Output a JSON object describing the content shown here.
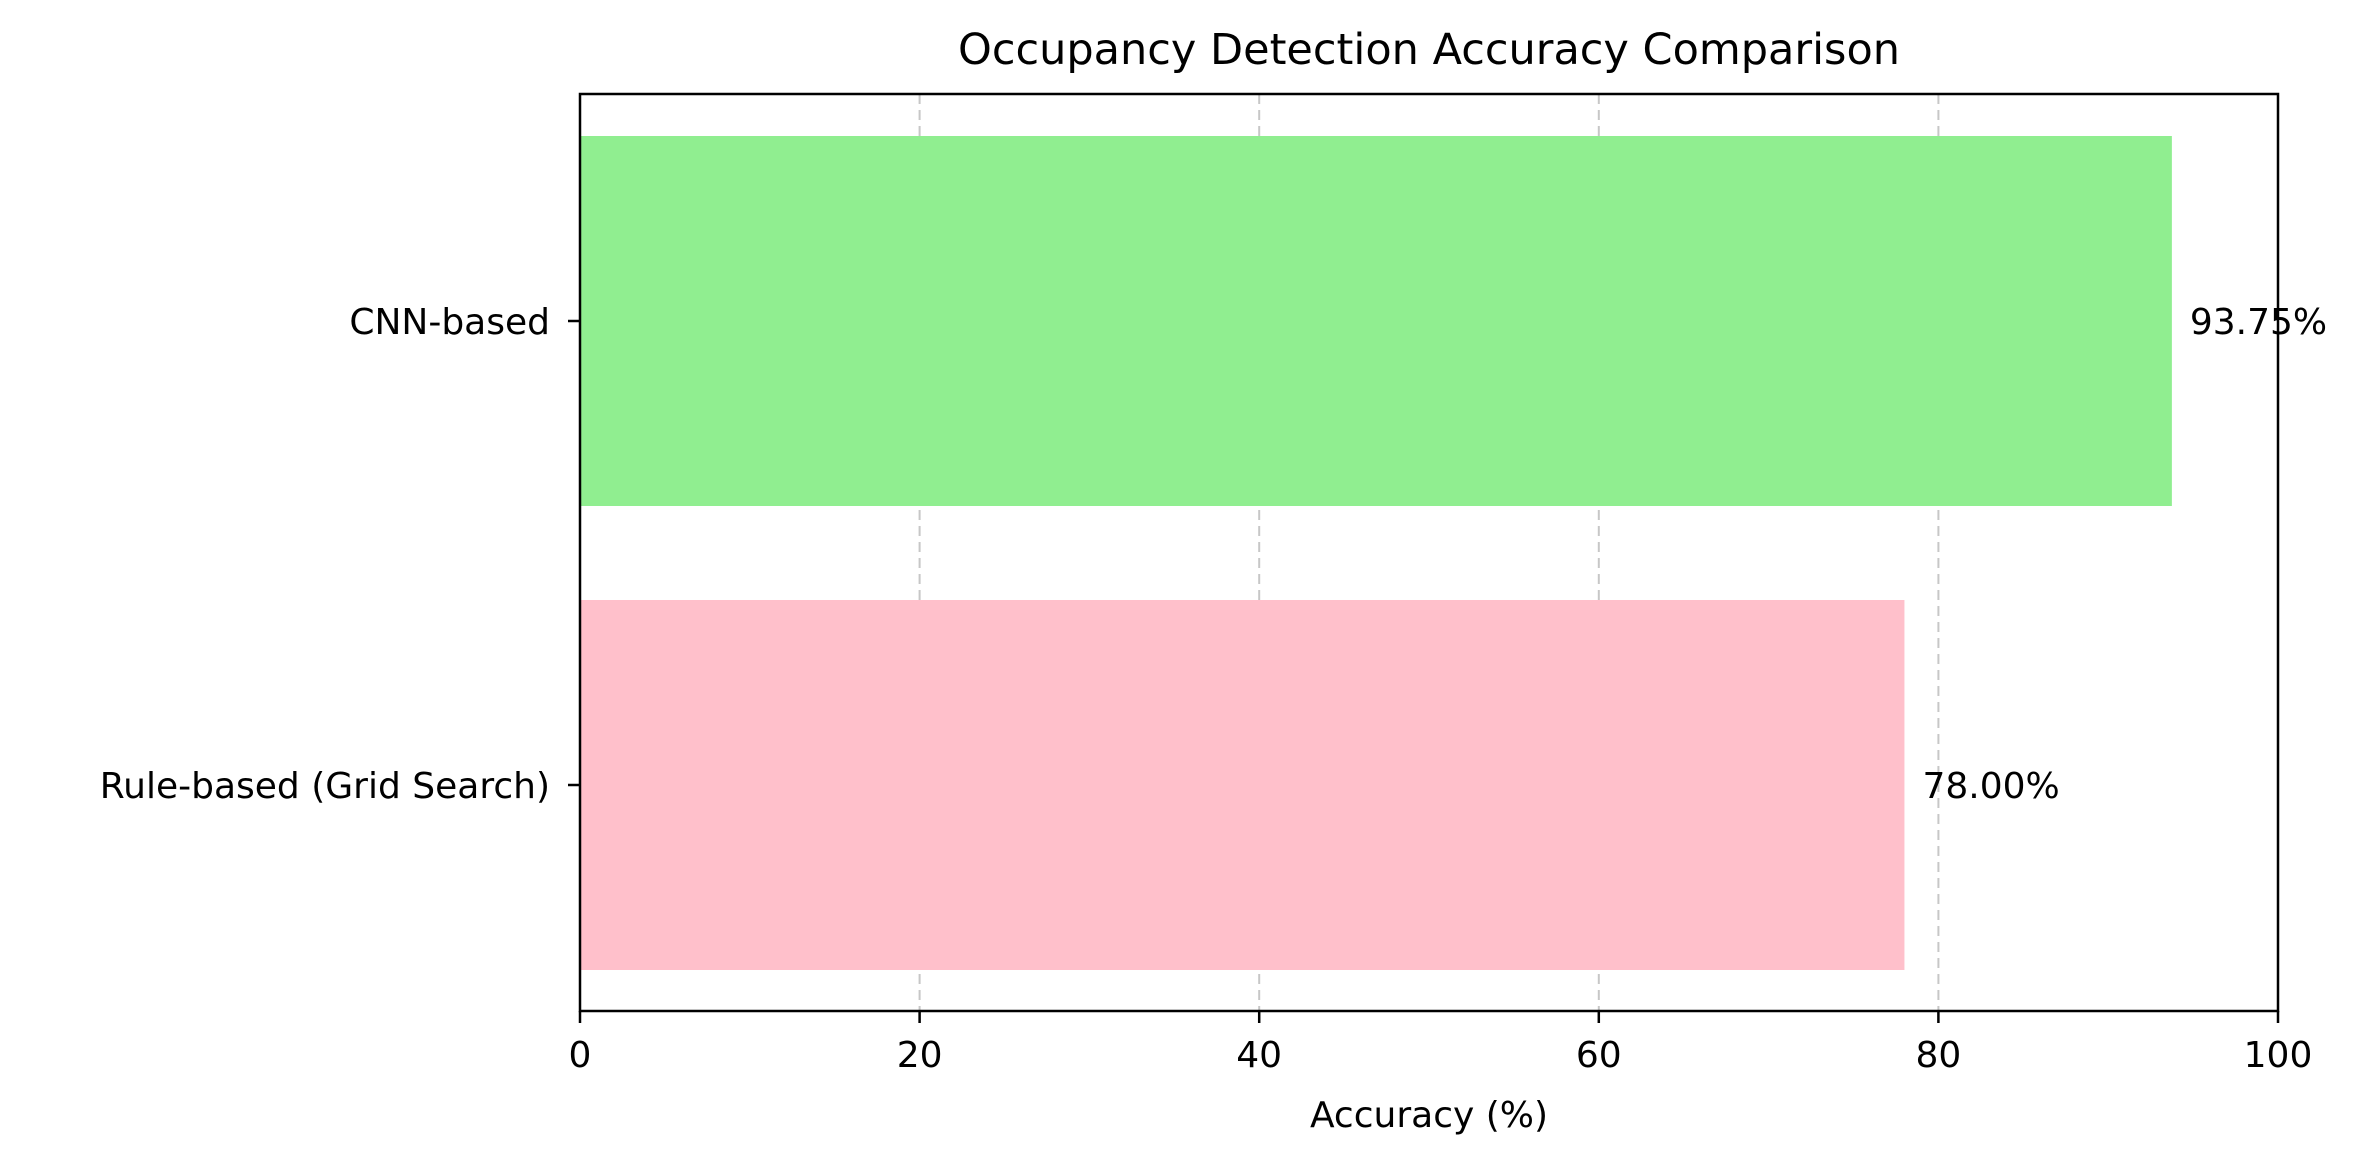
{
  "chart_data": {
    "type": "bar",
    "orientation": "horizontal",
    "title": "Occupancy Detection Accuracy Comparison",
    "xlabel": "Accuracy (%)",
    "ylabel": "",
    "xlim": [
      0,
      100
    ],
    "xticks": [
      0,
      20,
      40,
      60,
      80,
      100
    ],
    "grid": "x-dashed",
    "categories": [
      "Rule-based (Grid Search)",
      "CNN-based"
    ],
    "values": [
      78.0,
      93.75
    ],
    "value_labels": [
      "78.00%",
      "93.75%"
    ],
    "colors": [
      "#ffc0cb",
      "#90ee90"
    ]
  }
}
